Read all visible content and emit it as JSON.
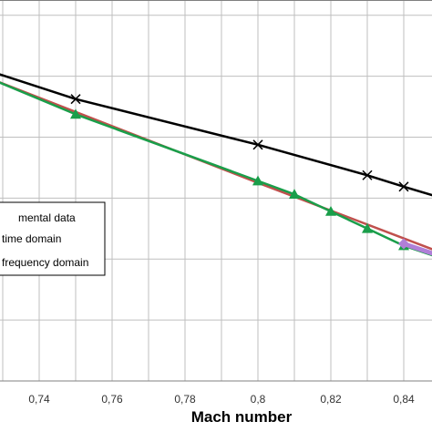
{
  "chart_data": {
    "type": "line",
    "title": "",
    "xlabel": "Mach number",
    "ylabel": "",
    "xlim": [
      0.73,
      0.85
    ],
    "ylim": [
      0,
      1
    ],
    "grid": true,
    "x_ticks": [
      "0,74",
      "0,76",
      "0,78",
      "0,8",
      "0,82",
      "0,84"
    ],
    "x_tick_values": [
      0.74,
      0.76,
      0.78,
      0.8,
      0.82,
      0.84
    ],
    "legend": {
      "placement": "center-left",
      "entries": [
        "mental data",
        "time domain",
        "frequency domain"
      ]
    },
    "series": [
      {
        "name": "mental data",
        "color": "#000000",
        "marker": "x",
        "points": [
          [
            0.7275,
            0.81
          ],
          [
            0.75,
            0.74
          ],
          [
            0.8,
            0.62
          ],
          [
            0.83,
            0.54
          ],
          [
            0.84,
            0.51
          ],
          [
            0.8494,
            0.483
          ]
        ]
      },
      {
        "name": "time domain",
        "color": "#c0504d",
        "marker": "none",
        "points": [
          [
            0.7275,
            0.79
          ],
          [
            0.8,
            0.52
          ],
          [
            0.8494,
            0.34
          ]
        ]
      },
      {
        "name": "frequency domain",
        "color": "#1a9e4a",
        "marker": "triangle",
        "points": [
          [
            0.7275,
            0.79
          ],
          [
            0.75,
            0.7
          ],
          [
            0.8,
            0.525
          ],
          [
            0.81,
            0.49
          ],
          [
            0.82,
            0.445
          ],
          [
            0.83,
            0.4
          ],
          [
            0.84,
            0.355
          ],
          [
            0.8494,
            0.325
          ]
        ]
      },
      {
        "name": "",
        "color": "#b07fd8",
        "marker": "diamond",
        "points": [
          [
            0.84,
            0.36
          ],
          [
            0.8494,
            0.33
          ]
        ]
      }
    ]
  }
}
